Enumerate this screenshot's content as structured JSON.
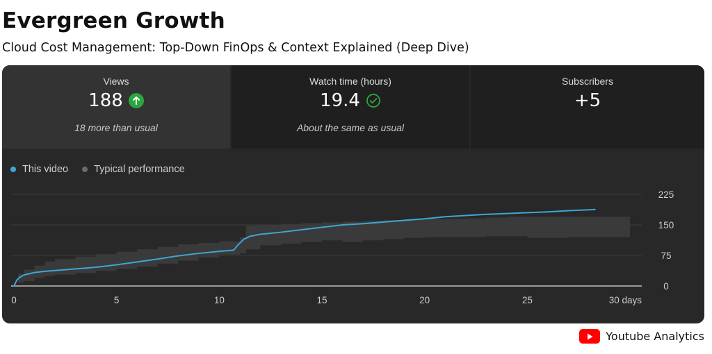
{
  "header": {
    "title": "Evergreen Growth",
    "subtitle": "Cloud Cost Management: Top-Down FinOps & Context Explained (Deep Dive)"
  },
  "metrics": [
    {
      "label": "Views",
      "value": "188",
      "note": "18 more than usual",
      "icon": "arrow-up-icon"
    },
    {
      "label": "Watch time (hours)",
      "value": "19.4",
      "note": "About the same as usual",
      "icon": "check-circle-icon"
    },
    {
      "label": "Subscribers",
      "value": "+5",
      "note": ""
    }
  ],
  "legend": [
    {
      "label": "This video",
      "color": "#3ea6d4"
    },
    {
      "label": "Typical performance",
      "color": "#6b6b6b"
    }
  ],
  "colors": {
    "line": "#3ea6d4",
    "band": "#3a3a3a",
    "up": "#2ba640",
    "brand": "#ff0000"
  },
  "brand": {
    "label": "Youtube Analytics",
    "icon": "youtube-icon"
  },
  "chart_data": {
    "type": "line",
    "xlabel": "",
    "ylabel": "",
    "xlim": [
      0,
      30
    ],
    "ylim": [
      0,
      225
    ],
    "x_ticks": [
      "0",
      "5",
      "10",
      "15",
      "20",
      "25",
      "30 days"
    ],
    "x_tick_values": [
      0,
      5,
      10,
      15,
      20,
      25,
      30
    ],
    "y_ticks": [
      "0",
      "75",
      "150",
      "225"
    ],
    "y_tick_values": [
      0,
      75,
      150,
      225
    ],
    "y_axis_side": "right",
    "grid": true,
    "series": [
      {
        "name": "This video",
        "x": [
          0,
          0.15,
          0.3,
          0.5,
          1,
          1.5,
          2,
          3,
          4,
          5,
          6,
          7,
          8,
          9,
          10,
          10.7,
          10.9,
          11.2,
          11.5,
          12,
          13,
          14,
          15,
          16,
          17,
          18,
          19,
          20,
          21,
          22,
          23,
          24,
          25,
          26,
          27,
          28,
          28.3
        ],
        "y": [
          0,
          15,
          22,
          27,
          33,
          36,
          38,
          42,
          46,
          52,
          59,
          66,
          74,
          80,
          85,
          88,
          100,
          115,
          122,
          127,
          132,
          138,
          144,
          150,
          153,
          157,
          161,
          165,
          170,
          173,
          176,
          178,
          180,
          182,
          185,
          187,
          188
        ]
      },
      {
        "name": "Typical performance",
        "x": [
          0,
          0.2,
          0.5,
          1,
          1.5,
          2,
          3,
          4,
          5,
          6,
          7,
          8,
          9,
          10,
          11,
          11.3,
          12,
          13,
          14,
          15,
          16,
          17,
          18,
          19,
          20,
          21,
          22,
          23,
          24,
          25,
          26,
          27,
          28,
          29,
          30
        ],
        "low": [
          0,
          8,
          12,
          20,
          25,
          28,
          32,
          37,
          42,
          48,
          55,
          62,
          70,
          77,
          80,
          90,
          100,
          104,
          108,
          112,
          108,
          112,
          115,
          118,
          120,
          120,
          120,
          122,
          122,
          118,
          118,
          120,
          120,
          120,
          120
        ],
        "high": [
          0,
          30,
          40,
          50,
          60,
          66,
          72,
          78,
          84,
          90,
          96,
          102,
          106,
          110,
          120,
          148,
          150,
          152,
          154,
          156,
          158,
          160,
          162,
          164,
          164,
          165,
          166,
          168,
          170,
          170,
          170,
          170,
          170,
          170,
          170
        ]
      }
    ]
  }
}
